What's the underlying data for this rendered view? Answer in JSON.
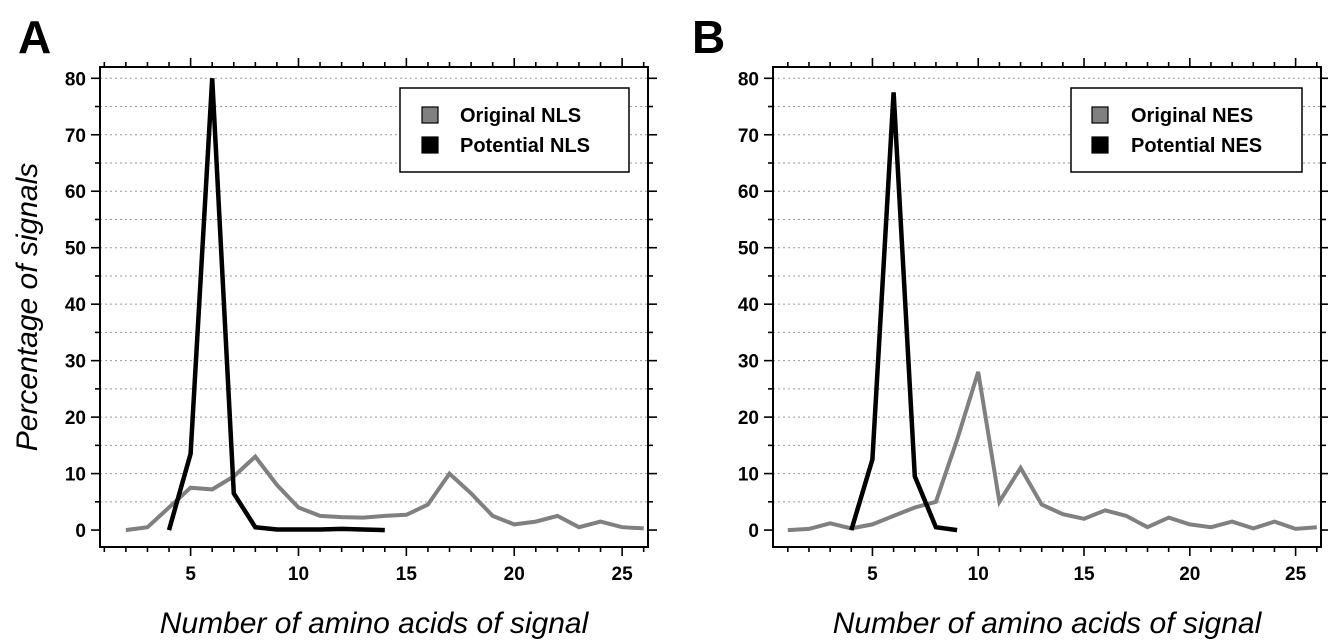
{
  "chart_data": [
    {
      "type": "line",
      "panel_label": "A",
      "xlabel": "Number of amino acids of signal",
      "ylabel": "Percentage of signals",
      "xlim": [
        0.8,
        26.2
      ],
      "ylim": [
        -3,
        82
      ],
      "x_ticks": [
        5,
        10,
        15,
        20,
        25
      ],
      "y_ticks": [
        0,
        10,
        20,
        30,
        40,
        50,
        60,
        70,
        80
      ],
      "grid": "horizontal-dotted",
      "legend_position": "top-right",
      "series": [
        {
          "name": "Original NLS",
          "color": "#808080",
          "x": [
            2,
            3,
            4,
            5,
            6,
            7,
            8,
            9,
            10,
            11,
            12,
            13,
            14,
            15,
            16,
            17,
            18,
            19,
            20,
            21,
            22,
            23,
            24,
            25,
            26
          ],
          "y": [
            0,
            0.5,
            4,
            7.5,
            7.2,
            9.5,
            13,
            8,
            4,
            2.5,
            2.3,
            2.2,
            2.5,
            2.7,
            4.5,
            10,
            6.5,
            2.5,
            1,
            1.5,
            2.5,
            0.5,
            1.5,
            0.5,
            0.3
          ]
        },
        {
          "name": "Potential NLS",
          "color": "#000000",
          "x": [
            4,
            5,
            6,
            7,
            8,
            9,
            10,
            11,
            12,
            13,
            14
          ],
          "y": [
            0,
            13.5,
            80,
            6.5,
            0.5,
            0.1,
            0.1,
            0.1,
            0.2,
            0.1,
            0
          ]
        }
      ]
    },
    {
      "type": "line",
      "panel_label": "B",
      "xlabel": "Number of amino acids of signal",
      "ylabel": "",
      "xlim": [
        0.3,
        26.2
      ],
      "ylim": [
        -3,
        82
      ],
      "x_ticks": [
        5,
        10,
        15,
        20,
        25
      ],
      "y_ticks": [
        0,
        10,
        20,
        30,
        40,
        50,
        60,
        70,
        80
      ],
      "grid": "horizontal-dotted",
      "legend_position": "top-right",
      "series": [
        {
          "name": "Original NES",
          "color": "#808080",
          "x": [
            1,
            2,
            3,
            4,
            5,
            6,
            7,
            8,
            9,
            10,
            11,
            12,
            13,
            14,
            15,
            16,
            17,
            18,
            19,
            20,
            21,
            22,
            23,
            24,
            25,
            26
          ],
          "y": [
            0,
            0.2,
            1.2,
            0.3,
            1,
            2.5,
            4,
            5,
            16,
            28,
            5,
            11,
            4.5,
            2.8,
            2,
            3.5,
            2.5,
            0.5,
            2.2,
            1,
            0.5,
            1.5,
            0.3,
            1.5,
            0.2,
            0.5
          ]
        },
        {
          "name": "Potential NES",
          "color": "#000000",
          "x": [
            4,
            5,
            6,
            7,
            8,
            9
          ],
          "y": [
            0,
            12.5,
            77.5,
            9.5,
            0.5,
            0
          ]
        }
      ]
    }
  ]
}
